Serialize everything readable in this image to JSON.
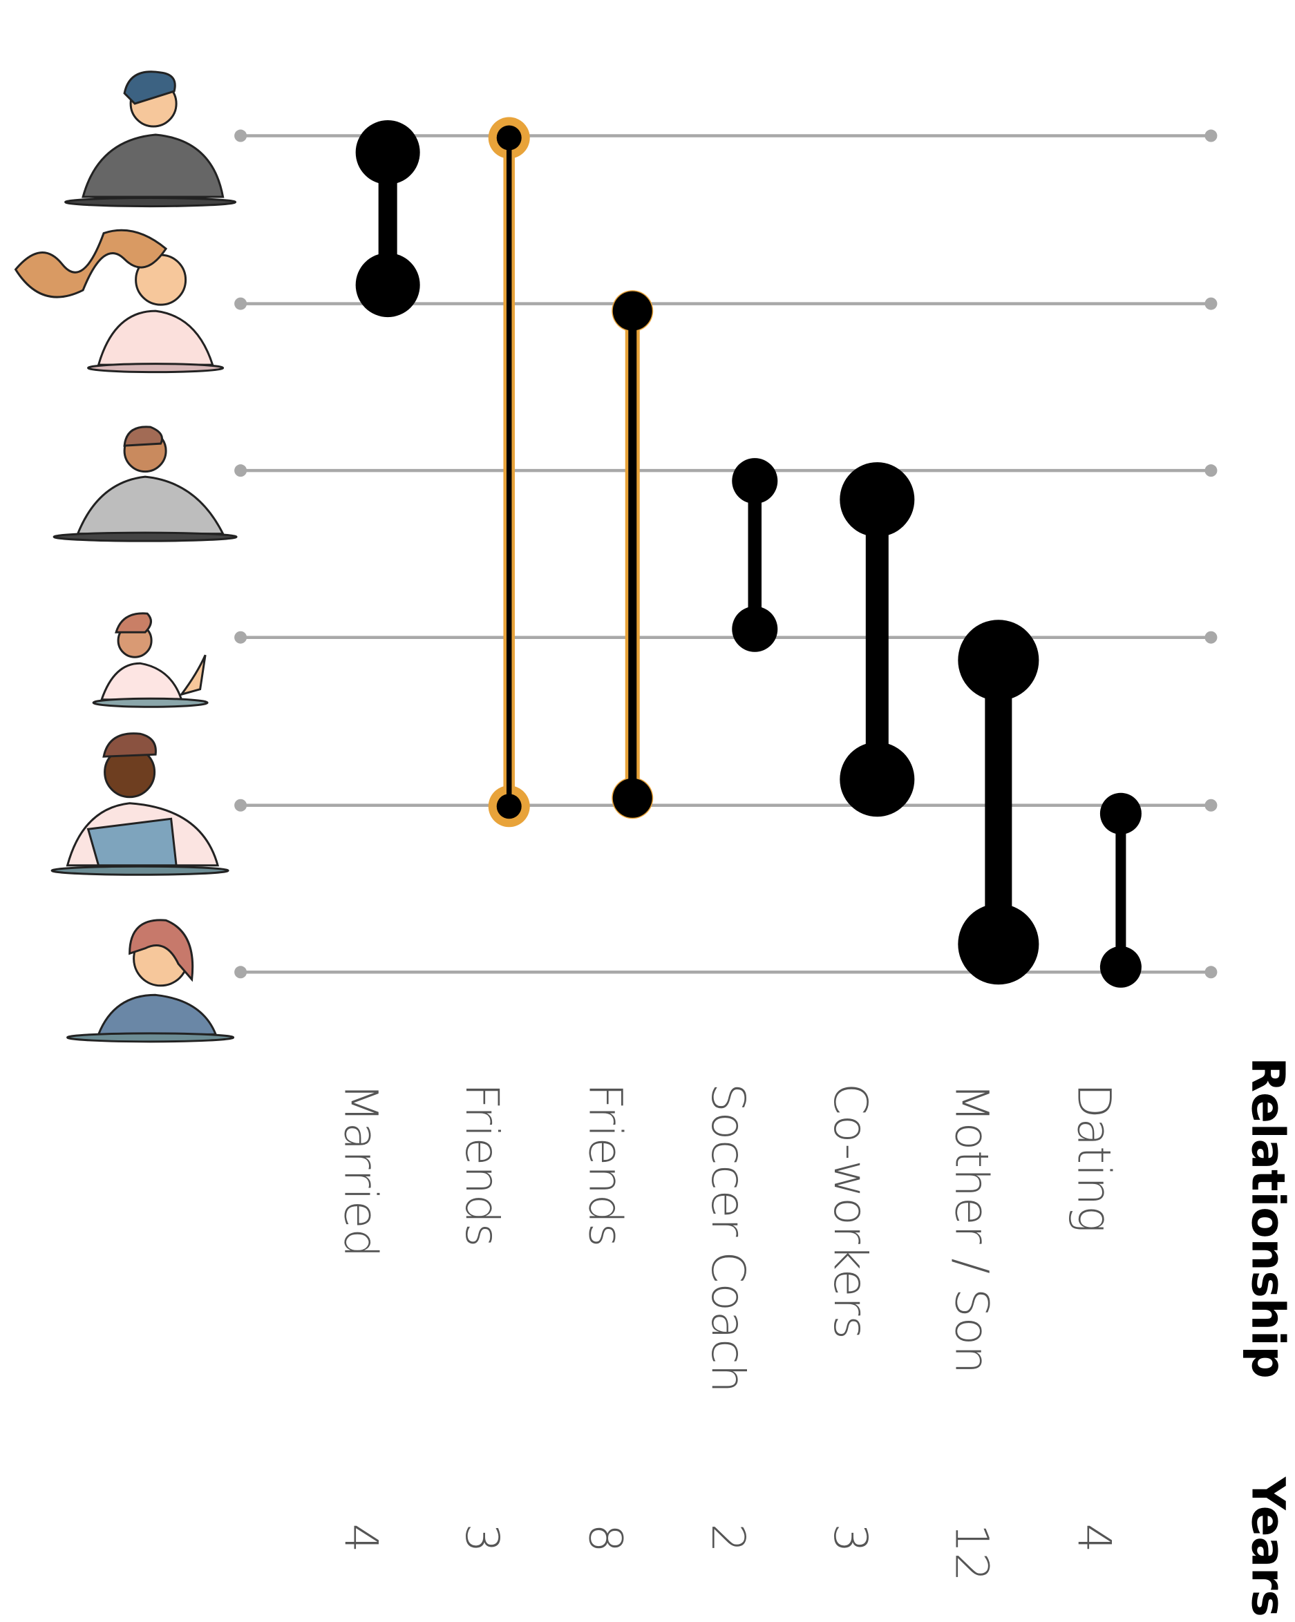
{
  "header": {
    "relationship": "Relationship",
    "years": "Years"
  },
  "relationships": [
    {
      "label": "Married",
      "years": 4
    },
    {
      "label": "Friends",
      "years": 3
    },
    {
      "label": "Friends",
      "years": 8
    },
    {
      "label": "Soccer Coach",
      "years": 2
    },
    {
      "label": "Co-workers",
      "years": 3
    },
    {
      "label": "Mother / Son",
      "years": 12
    },
    {
      "label": "Dating",
      "years": 4
    }
  ]
}
